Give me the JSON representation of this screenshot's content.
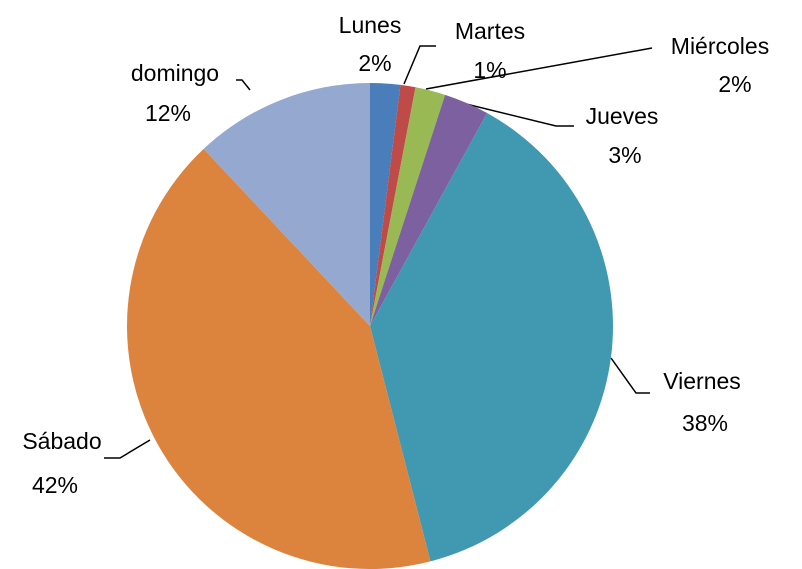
{
  "chart_data": {
    "type": "pie",
    "categories": [
      "Lunes",
      "Martes",
      "Miércoles",
      "Jueves",
      "Viernes",
      "Sábado",
      "domingo"
    ],
    "values": [
      2,
      1,
      2,
      3,
      38,
      42,
      12
    ],
    "value_labels": [
      "2%",
      "1%",
      "2%",
      "3%",
      "38%",
      "42%",
      "12%"
    ],
    "colors": [
      "#4a7ebb",
      "#be4b48",
      "#98b954",
      "#7d60a0",
      "#4199b1",
      "#dc843e",
      "#95a9d0"
    ]
  }
}
